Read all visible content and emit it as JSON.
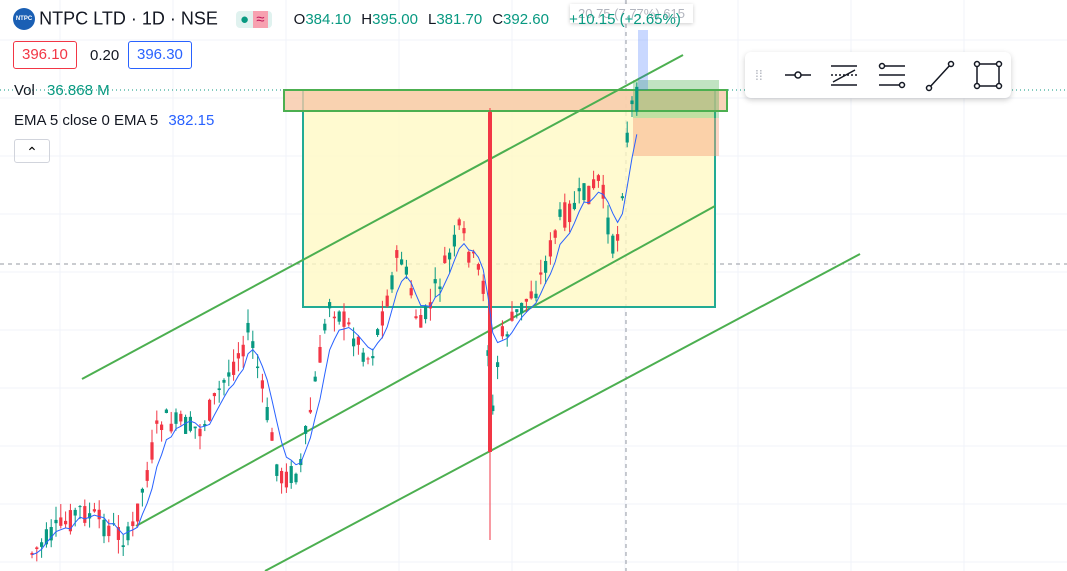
{
  "header": {
    "logo": "NTPC",
    "symbol": "NTPC LTD · 1D · NSE",
    "ohlc": [
      {
        "key": "O",
        "value": "384.10"
      },
      {
        "key": "H",
        "value": "395.00"
      },
      {
        "key": "L",
        "value": "381.70"
      },
      {
        "key": "C",
        "value": "392.60"
      }
    ],
    "change": "+10.15 (+2.65%)",
    "sell": "396.10",
    "spread": "0.20",
    "buy": "396.30"
  },
  "indicators": {
    "vol_label": "Vol",
    "vol_value": "36.868 M",
    "ema_label": "EMA 5 close 0 EMA 5",
    "ema_value": "382.15"
  },
  "tooltip": "20.75 (7.77%) 615"
}
